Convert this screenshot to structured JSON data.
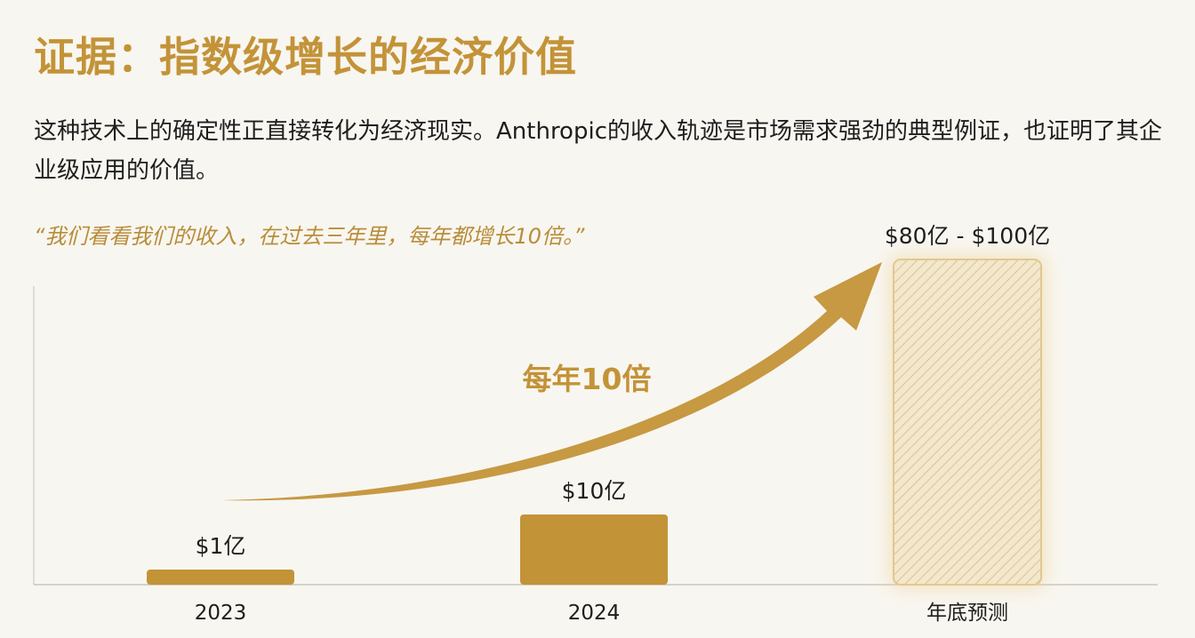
{
  "title": "证据：指数级增长的经济价值",
  "body": "这种技术上的确定性正直接转化为经济现实。Anthropic的收入轨迹是市场需求强劲的典型例证，也证明了其企业级应用的价值。",
  "quote": "“我们看看我们的收入，在过去三年里，每年都增长10倍。”",
  "colors": {
    "accent": "#c39338",
    "forecast_fill": "#f3e7cc",
    "axis": "#c8c5bc"
  },
  "chart_data": {
    "type": "bar",
    "categories": [
      "2023",
      "2024",
      "年底预测"
    ],
    "values": [
      1,
      10,
      100
    ],
    "data_labels": [
      "$1亿",
      "$10亿",
      "$80亿 - $100亿"
    ],
    "bar_styles": [
      "solid",
      "solid",
      "hatched-forecast"
    ],
    "annotation": "每年10倍",
    "annotation_arrow": "curved-up-right",
    "grid": false,
    "title": "",
    "xlabel": "",
    "ylabel": ""
  }
}
